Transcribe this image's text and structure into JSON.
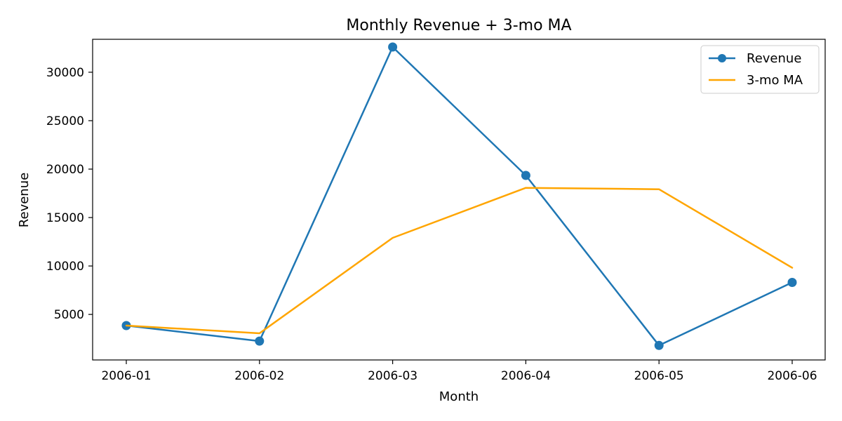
{
  "chart_data": {
    "type": "line",
    "title": "Monthly Revenue + 3-mo MA",
    "xlabel": "Month",
    "ylabel": "Revenue",
    "categories": [
      "2006-01",
      "2006-02",
      "2006-03",
      "2006-04",
      "2006-05",
      "2006-06"
    ],
    "ylim": [
      300,
      33400
    ],
    "yticks": [
      5000,
      10000,
      15000,
      20000,
      25000,
      30000
    ],
    "grid": false,
    "legend_position": "top-right",
    "series": [
      {
        "name": "Revenue",
        "values": [
          3850,
          2250,
          32600,
          19350,
          1800,
          8300
        ],
        "color": "#1f77b4",
        "marker": "circle"
      },
      {
        "name": "3-mo MA",
        "values": [
          3850,
          3050,
          12900,
          18070,
          17920,
          9820
        ],
        "color": "#ffa500",
        "marker": "none"
      }
    ]
  }
}
